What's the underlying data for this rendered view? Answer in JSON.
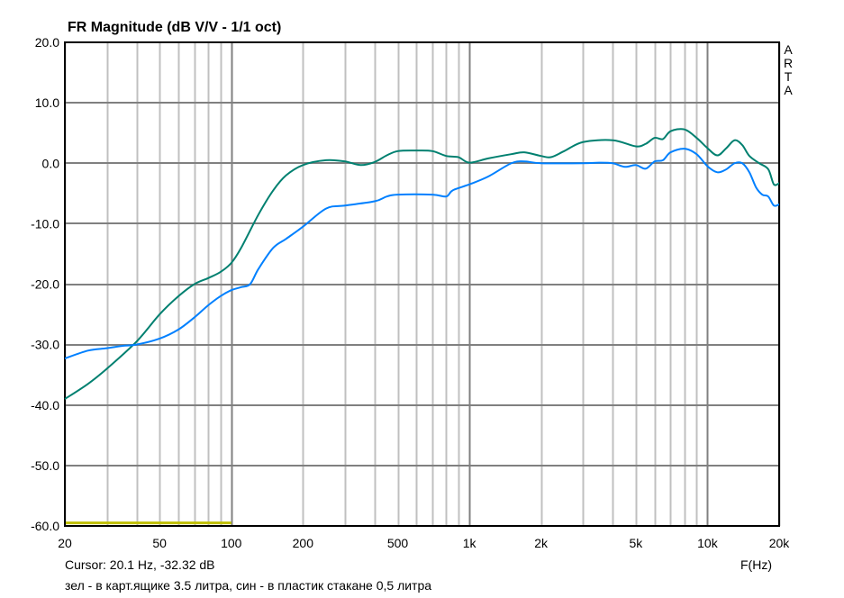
{
  "chart_data": {
    "type": "line",
    "title": "FR Magnitude (dB V/V - 1/1 oct)",
    "xlabel": "F(Hz)",
    "ylabel": "",
    "xscale": "log",
    "xlim": [
      20,
      20000
    ],
    "ylim": [
      -60,
      20
    ],
    "grid": true,
    "x_ticks": [
      20,
      50,
      100,
      200,
      500,
      1000,
      2000,
      5000,
      10000,
      20000
    ],
    "x_tick_labels": [
      "20",
      "50",
      "100",
      "200",
      "500",
      "1k",
      "2k",
      "5k",
      "10k",
      "20k"
    ],
    "y_ticks": [
      20,
      10,
      0,
      -10,
      -20,
      -30,
      -40,
      -50,
      -60
    ],
    "y_tick_labels": [
      "20.0",
      "10.0",
      "0.0",
      "-10.0",
      "-20.0",
      "-30.0",
      "-40.0",
      "-50.0",
      "-60.0"
    ],
    "series": [
      {
        "color": "#008070",
        "x": [
          20,
          25,
          30,
          40,
          50,
          60,
          70,
          80,
          90,
          100,
          110,
          130,
          150,
          170,
          200,
          250,
          300,
          350,
          400,
          450,
          500,
          600,
          700,
          800,
          900,
          1000,
          1200,
          1500,
          1700,
          2000,
          2200,
          2500,
          3000,
          4000,
          5000,
          5500,
          6000,
          6500,
          7000,
          8000,
          9000,
          10000,
          11000,
          12000,
          13000,
          14000,
          15000,
          16500,
          18000,
          19000,
          20000
        ],
        "y": [
          -39,
          -36.5,
          -34,
          -29.5,
          -25,
          -22,
          -20,
          -19,
          -18,
          -16.5,
          -14,
          -8.5,
          -4.5,
          -2,
          -0.3,
          0.5,
          0.3,
          -0.3,
          0.2,
          1.3,
          2,
          2.1,
          2,
          1.2,
          1,
          0.1,
          0.8,
          1.5,
          1.8,
          1.2,
          1,
          2,
          3.5,
          3.8,
          2.8,
          3.2,
          4.2,
          4,
          5.3,
          5.6,
          4.2,
          2.5,
          1.3,
          2.5,
          3.8,
          3,
          1.2,
          0,
          -1,
          -3.5,
          -3.3
        ]
      },
      {
        "color": "#0080ff",
        "x": [
          20,
          25,
          30,
          35,
          40,
          50,
          60,
          70,
          80,
          90,
          100,
          110,
          120,
          130,
          150,
          170,
          200,
          250,
          300,
          400,
          450,
          500,
          700,
          800,
          850,
          1000,
          1200,
          1500,
          1700,
          2000,
          3000,
          3500,
          4000,
          4500,
          5000,
          5500,
          6000,
          6500,
          7000,
          8000,
          9000,
          10000,
          11000,
          12000,
          13000,
          14000,
          15000,
          16000,
          17000,
          18000,
          19000,
          20000
        ],
        "y": [
          -32.3,
          -31,
          -30.6,
          -30.2,
          -30,
          -29,
          -27.5,
          -25.5,
          -23.5,
          -22,
          -21,
          -20.5,
          -20,
          -17.5,
          -14,
          -12.5,
          -10.5,
          -7.5,
          -7,
          -6.3,
          -5.5,
          -5.2,
          -5.2,
          -5.5,
          -4.5,
          -3.5,
          -2.2,
          0,
          0.3,
          0,
          0,
          0.1,
          0,
          -0.6,
          -0.3,
          -0.9,
          0.3,
          0.5,
          1.8,
          2.4,
          1.5,
          -0.5,
          -1.5,
          -1,
          0,
          0,
          -1.5,
          -4,
          -5.2,
          -5.5,
          -7,
          -6.8
        ]
      }
    ],
    "marker_band": {
      "color": "#c0c000",
      "x": [
        20,
        100
      ],
      "y": -59.5
    },
    "grid_major_color": "#808080",
    "grid_minor_color": "#c0c0c0"
  },
  "cursor_readout": "Cursor: 20.1 Hz, -32.32 dB",
  "legend_note": "зел - в карт.ящике 3.5 литра, син - в пластик стакане 0,5 литра",
  "brand": "ARTA"
}
